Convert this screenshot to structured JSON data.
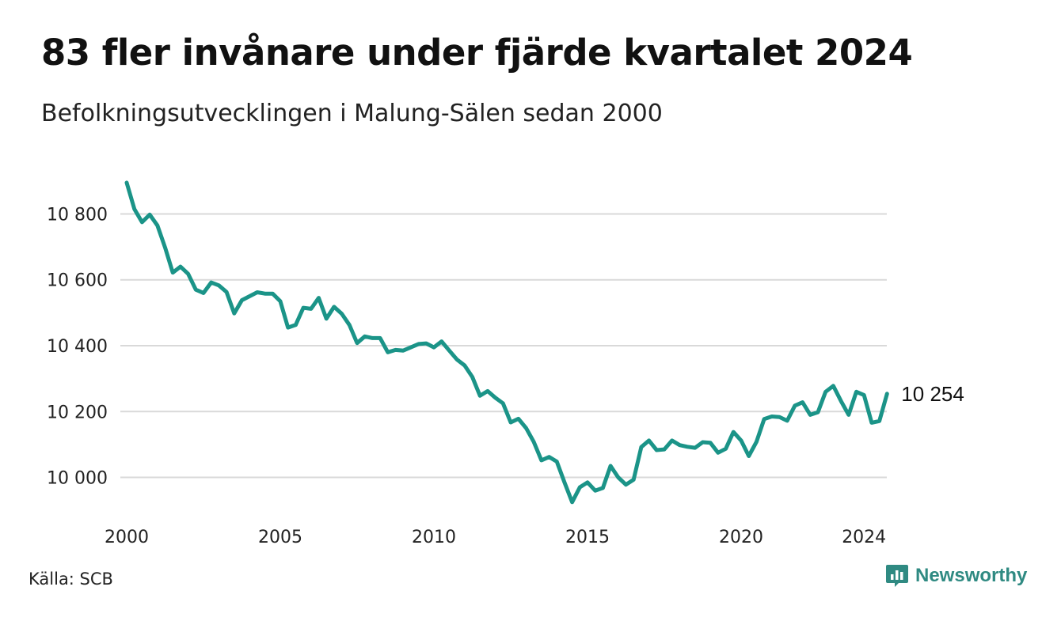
{
  "title": "83 fler invånare under fjärde kvartalet 2024",
  "subtitle": "Befolkningsutvecklingen i Malung-Sälen sedan 2000",
  "source": "Källa: SCB",
  "brand": {
    "name": "Newsworthy",
    "icon": "newsworthy-logo-icon",
    "color": "#2f8a82"
  },
  "chart_data": {
    "type": "line",
    "line_color": "#1b9488",
    "grid": true,
    "y_ticks": [
      {
        "value": 10000,
        "label": "10 000"
      },
      {
        "value": 10200,
        "label": "10 200"
      },
      {
        "value": 10400,
        "label": "10 400"
      },
      {
        "value": 10600,
        "label": "10 600"
      },
      {
        "value": 10800,
        "label": "10 800"
      }
    ],
    "x_ticks": [
      {
        "value": 2000,
        "label": "2000"
      },
      {
        "value": 2005,
        "label": "2005"
      },
      {
        "value": 2010,
        "label": "2010"
      },
      {
        "value": 2015,
        "label": "2015"
      },
      {
        "value": 2020,
        "label": "2020"
      },
      {
        "value": 2024,
        "label": "2024"
      }
    ],
    "xlim": [
      2000,
      2025
    ],
    "ylim": [
      9910,
      10950
    ],
    "end_label": "10 254",
    "series": [
      {
        "values": [
          [
            2000.0,
            10895
          ],
          [
            2000.25,
            10815
          ],
          [
            2000.5,
            10775
          ],
          [
            2000.75,
            10798
          ],
          [
            2001.0,
            10765
          ],
          [
            2001.25,
            10698
          ],
          [
            2001.5,
            10622
          ],
          [
            2001.75,
            10640
          ],
          [
            2002.0,
            10618
          ],
          [
            2002.25,
            10570
          ],
          [
            2002.5,
            10560
          ],
          [
            2002.75,
            10592
          ],
          [
            2003.0,
            10583
          ],
          [
            2003.25,
            10563
          ],
          [
            2003.5,
            10498
          ],
          [
            2003.75,
            10538
          ],
          [
            2004.0,
            10550
          ],
          [
            2004.25,
            10562
          ],
          [
            2004.5,
            10558
          ],
          [
            2004.75,
            10558
          ],
          [
            2005.0,
            10535
          ],
          [
            2005.25,
            10455
          ],
          [
            2005.5,
            10463
          ],
          [
            2005.75,
            10515
          ],
          [
            2006.0,
            10512
          ],
          [
            2006.25,
            10545
          ],
          [
            2006.5,
            10482
          ],
          [
            2006.75,
            10518
          ],
          [
            2007.0,
            10497
          ],
          [
            2007.25,
            10463
          ],
          [
            2007.5,
            10408
          ],
          [
            2007.75,
            10428
          ],
          [
            2008.0,
            10423
          ],
          [
            2008.25,
            10423
          ],
          [
            2008.5,
            10380
          ],
          [
            2008.75,
            10387
          ],
          [
            2009.0,
            10385
          ],
          [
            2009.25,
            10395
          ],
          [
            2009.5,
            10405
          ],
          [
            2009.75,
            10407
          ],
          [
            2010.0,
            10395
          ],
          [
            2010.25,
            10413
          ],
          [
            2010.5,
            10385
          ],
          [
            2010.75,
            10358
          ],
          [
            2011.0,
            10340
          ],
          [
            2011.25,
            10305
          ],
          [
            2011.5,
            10248
          ],
          [
            2011.75,
            10262
          ],
          [
            2012.0,
            10242
          ],
          [
            2012.25,
            10225
          ],
          [
            2012.5,
            10167
          ],
          [
            2012.75,
            10178
          ],
          [
            2013.0,
            10150
          ],
          [
            2013.25,
            10108
          ],
          [
            2013.5,
            10052
          ],
          [
            2013.75,
            10062
          ],
          [
            2014.0,
            10048
          ],
          [
            2014.25,
            9985
          ],
          [
            2014.5,
            9925
          ],
          [
            2014.75,
            9970
          ],
          [
            2015.0,
            9985
          ],
          [
            2015.25,
            9960
          ],
          [
            2015.5,
            9968
          ],
          [
            2015.75,
            10035
          ],
          [
            2016.0,
            10000
          ],
          [
            2016.25,
            9978
          ],
          [
            2016.5,
            9993
          ],
          [
            2016.75,
            10092
          ],
          [
            2017.0,
            10112
          ],
          [
            2017.25,
            10083
          ],
          [
            2017.5,
            10085
          ],
          [
            2017.75,
            10112
          ],
          [
            2018.0,
            10098
          ],
          [
            2018.25,
            10093
          ],
          [
            2018.5,
            10090
          ],
          [
            2018.75,
            10107
          ],
          [
            2019.0,
            10105
          ],
          [
            2019.25,
            10075
          ],
          [
            2019.5,
            10087
          ],
          [
            2019.75,
            10138
          ],
          [
            2020.0,
            10112
          ],
          [
            2020.25,
            10065
          ],
          [
            2020.5,
            10108
          ],
          [
            2020.75,
            10177
          ],
          [
            2021.0,
            10185
          ],
          [
            2021.25,
            10183
          ],
          [
            2021.5,
            10172
          ],
          [
            2021.75,
            10218
          ],
          [
            2022.0,
            10228
          ],
          [
            2022.25,
            10190
          ],
          [
            2022.5,
            10198
          ],
          [
            2022.75,
            10260
          ],
          [
            2023.0,
            10278
          ],
          [
            2023.25,
            10232
          ],
          [
            2023.5,
            10190
          ],
          [
            2023.75,
            10260
          ],
          [
            2024.0,
            10250
          ],
          [
            2024.25,
            10166
          ],
          [
            2024.5,
            10171
          ],
          [
            2024.75,
            10254
          ]
        ]
      }
    ]
  }
}
